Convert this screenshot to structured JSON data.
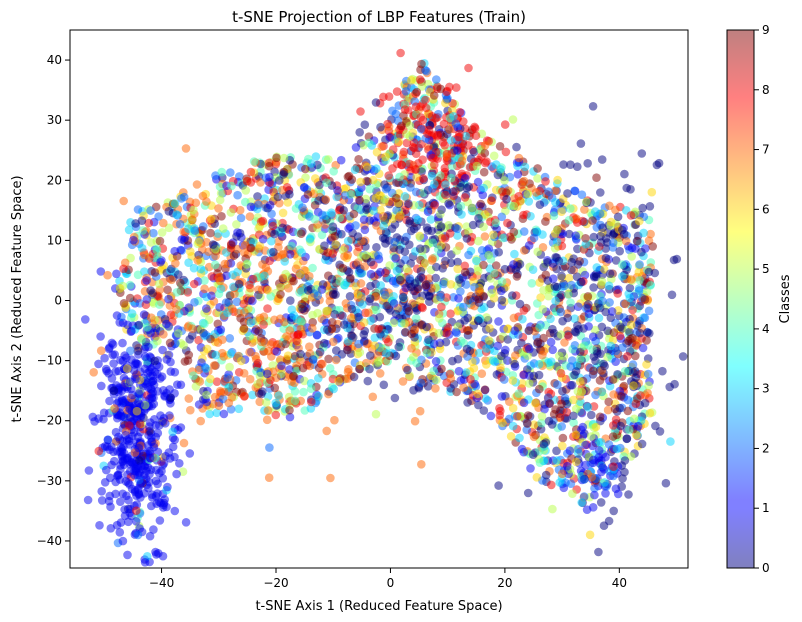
{
  "chart_data": {
    "type": "scatter",
    "title": "t-SNE Projection of LBP Features (Train)",
    "xlabel": "t-SNE Axis 1 (Reduced Feature Space)",
    "ylabel": "t-SNE Axis 2 (Reduced Feature Space)",
    "xlim": [
      -56,
      52
    ],
    "ylim": [
      -44.5,
      45
    ],
    "xticks": [
      -40,
      -20,
      0,
      20,
      40
    ],
    "yticks": [
      -40,
      -30,
      -20,
      -10,
      0,
      10,
      20,
      30,
      40
    ],
    "grid": false,
    "colormap": "jet",
    "marker_alpha": 0.5,
    "colorbar": {
      "label": "Classes",
      "range": [
        0,
        9
      ],
      "ticks": [
        0,
        1,
        2,
        3,
        4,
        5,
        6,
        7,
        8,
        9
      ]
    },
    "classes": [
      0,
      1,
      2,
      3,
      4,
      5,
      6,
      7,
      8,
      9
    ],
    "clusters": [
      {
        "class": 1,
        "center": [
          -44,
          -22
        ],
        "spread": [
          3.2,
          9.5
        ],
        "count": 520,
        "description": "dense blue cluster lower-left"
      },
      {
        "class": 1,
        "center": [
          36,
          -28
        ],
        "spread": [
          2.0,
          3.5
        ],
        "count": 40
      },
      {
        "class": 8,
        "center": [
          8,
          26
        ],
        "spread": [
          5.0,
          5.0
        ],
        "count": 160
      },
      {
        "class": 0,
        "center": [
          2,
          5
        ],
        "spread": [
          8.0,
          10.0
        ],
        "count": 250
      },
      {
        "class": 7,
        "center": [
          -20,
          -3
        ],
        "spread": [
          14.0,
          10.0
        ],
        "count": 240
      },
      {
        "class": 0,
        "center": [
          36,
          -5
        ],
        "spread": [
          8.0,
          15.0
        ],
        "count": 220
      }
    ],
    "region_outline": [
      [
        -48,
        2
      ],
      [
        -45,
        15
      ],
      [
        -38,
        17
      ],
      [
        -30,
        22
      ],
      [
        -20,
        24
      ],
      [
        -10,
        24
      ],
      [
        -3,
        28
      ],
      [
        2,
        36
      ],
      [
        6,
        40
      ],
      [
        9,
        36
      ],
      [
        14,
        29
      ],
      [
        22,
        24
      ],
      [
        32,
        19
      ],
      [
        38,
        16
      ],
      [
        45,
        15
      ],
      [
        46,
        8
      ],
      [
        45,
        -8
      ],
      [
        46,
        -18
      ],
      [
        43,
        -25
      ],
      [
        38,
        -31
      ],
      [
        34,
        -34
      ],
      [
        26,
        -30
      ],
      [
        22,
        -25
      ],
      [
        18,
        -20
      ],
      [
        12,
        -16
      ],
      [
        5,
        -14
      ],
      [
        0,
        -10
      ],
      [
        -5,
        -12
      ],
      [
        -12,
        -17
      ],
      [
        -18,
        -20
      ],
      [
        -25,
        -18
      ],
      [
        -33,
        -20
      ],
      [
        -36,
        -10
      ],
      [
        -44,
        -8
      ],
      [
        -48,
        -3
      ]
    ]
  }
}
